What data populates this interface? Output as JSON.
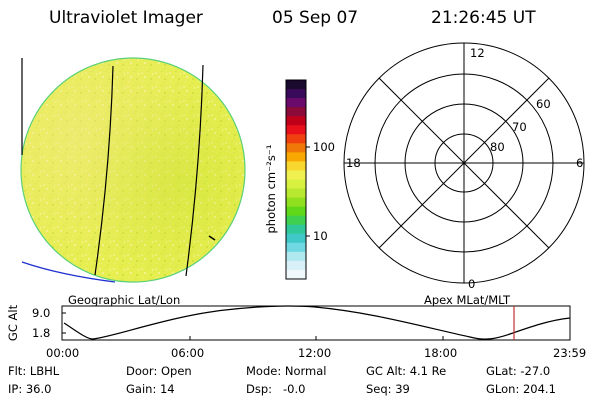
{
  "header": {
    "instrument": "Ultraviolet Imager",
    "date": "05 Sep 07",
    "time": "21:26:45 UT"
  },
  "colorbar": {
    "unit_label": "photon cm⁻²s⁻¹",
    "tick_labels": [
      "100",
      "10"
    ],
    "colors": [
      "#1a0a2e",
      "#3a0a5a",
      "#6a0a6a",
      "#8a0a3a",
      "#c00018",
      "#e8101a",
      "#f04010",
      "#f07808",
      "#f8a800",
      "#f8d830",
      "#f0f050",
      "#d8f040",
      "#b8e830",
      "#90e020",
      "#60d818",
      "#40d050",
      "#30c898",
      "#40c8c8",
      "#70d8e0",
      "#b0e8f0",
      "#d8f0f8",
      "#f0f8fc"
    ]
  },
  "polar_plot": {
    "hour_labels": {
      "top": "12",
      "left": "18",
      "right": "6",
      "bottom": "0"
    },
    "ring_labels": [
      "60",
      "70",
      "80"
    ]
  },
  "captions": {
    "left": "Geographic Lat/Lon",
    "right": "Apex MLat/MLT"
  },
  "altitude_plot": {
    "axis_label": "GC Alt",
    "y_ticks": [
      "9.0",
      "1.8"
    ],
    "x_ticks": [
      "00:00",
      "06:00",
      "12:00",
      "18:00",
      "23:59"
    ]
  },
  "info": {
    "row1": [
      "Flt: LBHL",
      "Door: Open",
      "Mode: Normal",
      "GC Alt: 4.1 Re",
      "GLat: -27.0"
    ],
    "row2": [
      "IP: 36.0",
      "Gain: 14",
      "Dsp:   -0.0",
      "Seq: 39",
      "GLon: 204.1"
    ]
  }
}
